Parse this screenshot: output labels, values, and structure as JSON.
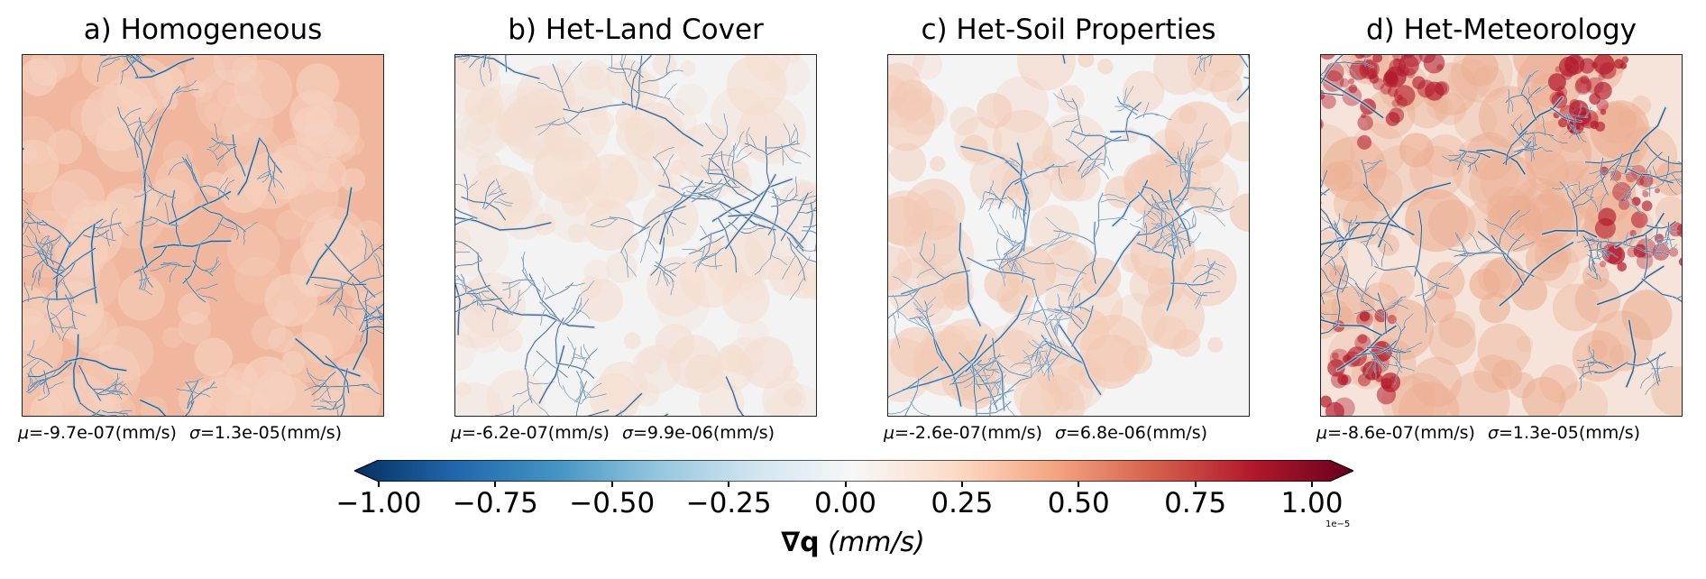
{
  "panels": [
    {
      "title": "a) Homogeneous",
      "mu_symbol": "μ",
      "mu_value": "=-9.7e-07(mm/s)",
      "sigma_symbol": "σ",
      "sigma_value": "=1.3e-05(mm/s)",
      "base_color": "#f1b79e",
      "secondary_color": "#f6d2c0",
      "low_color": "#b7d4ea",
      "stream_color": "#24476a"
    },
    {
      "title": "b) Het-Land Cover",
      "mu_symbol": "μ",
      "mu_value": "=-6.2e-07(mm/s)",
      "sigma_symbol": "σ",
      "sigma_value": "=9.9e-06(mm/s)",
      "base_color": "#f3f3f3",
      "secondary_color": "#f5ddd0",
      "low_color": "#d6e6f2",
      "stream_color": "#2b4f73"
    },
    {
      "title": "c) Het-Soil Properties",
      "mu_symbol": "μ",
      "mu_value": "=-2.6e-07(mm/s)",
      "sigma_symbol": "σ",
      "sigma_value": "=6.8e-06(mm/s)",
      "base_color": "#f4f4f4",
      "secondary_color": "#f3c9b4",
      "low_color": "#cfe2f0",
      "stream_color": "#2c5b86"
    },
    {
      "title": "d) Het-Meteorology",
      "mu_symbol": "μ",
      "mu_value": "=-8.6e-07(mm/s)",
      "sigma_symbol": "σ",
      "sigma_value": "=1.3e-05(mm/s)",
      "base_color": "#f6e4da",
      "secondary_color": "#ecae92",
      "low_color": "#c8ddee",
      "stream_color": "#1f3f63",
      "edge_color": "#b2182b"
    }
  ],
  "colorbar": {
    "ticks": [
      "−1.00",
      "−0.75",
      "−0.50",
      "−0.25",
      "0.00",
      "0.25",
      "0.50",
      "0.75",
      "1.00"
    ],
    "tick_values": [
      -1.0,
      -0.75,
      -0.5,
      -0.25,
      0.0,
      0.25,
      0.5,
      0.75,
      1.0
    ],
    "exponent": "1e−5",
    "label_symbol": "∇",
    "label_var": "q",
    "label_unit": "(mm/s)",
    "cmap_stops": [
      "#053061",
      "#2166ac",
      "#4393c3",
      "#92c5de",
      "#d1e5f0",
      "#f7f7f7",
      "#fddbc7",
      "#f4a582",
      "#d6604d",
      "#b2182b",
      "#67001f"
    ],
    "cmap": "RdBu_r"
  }
}
